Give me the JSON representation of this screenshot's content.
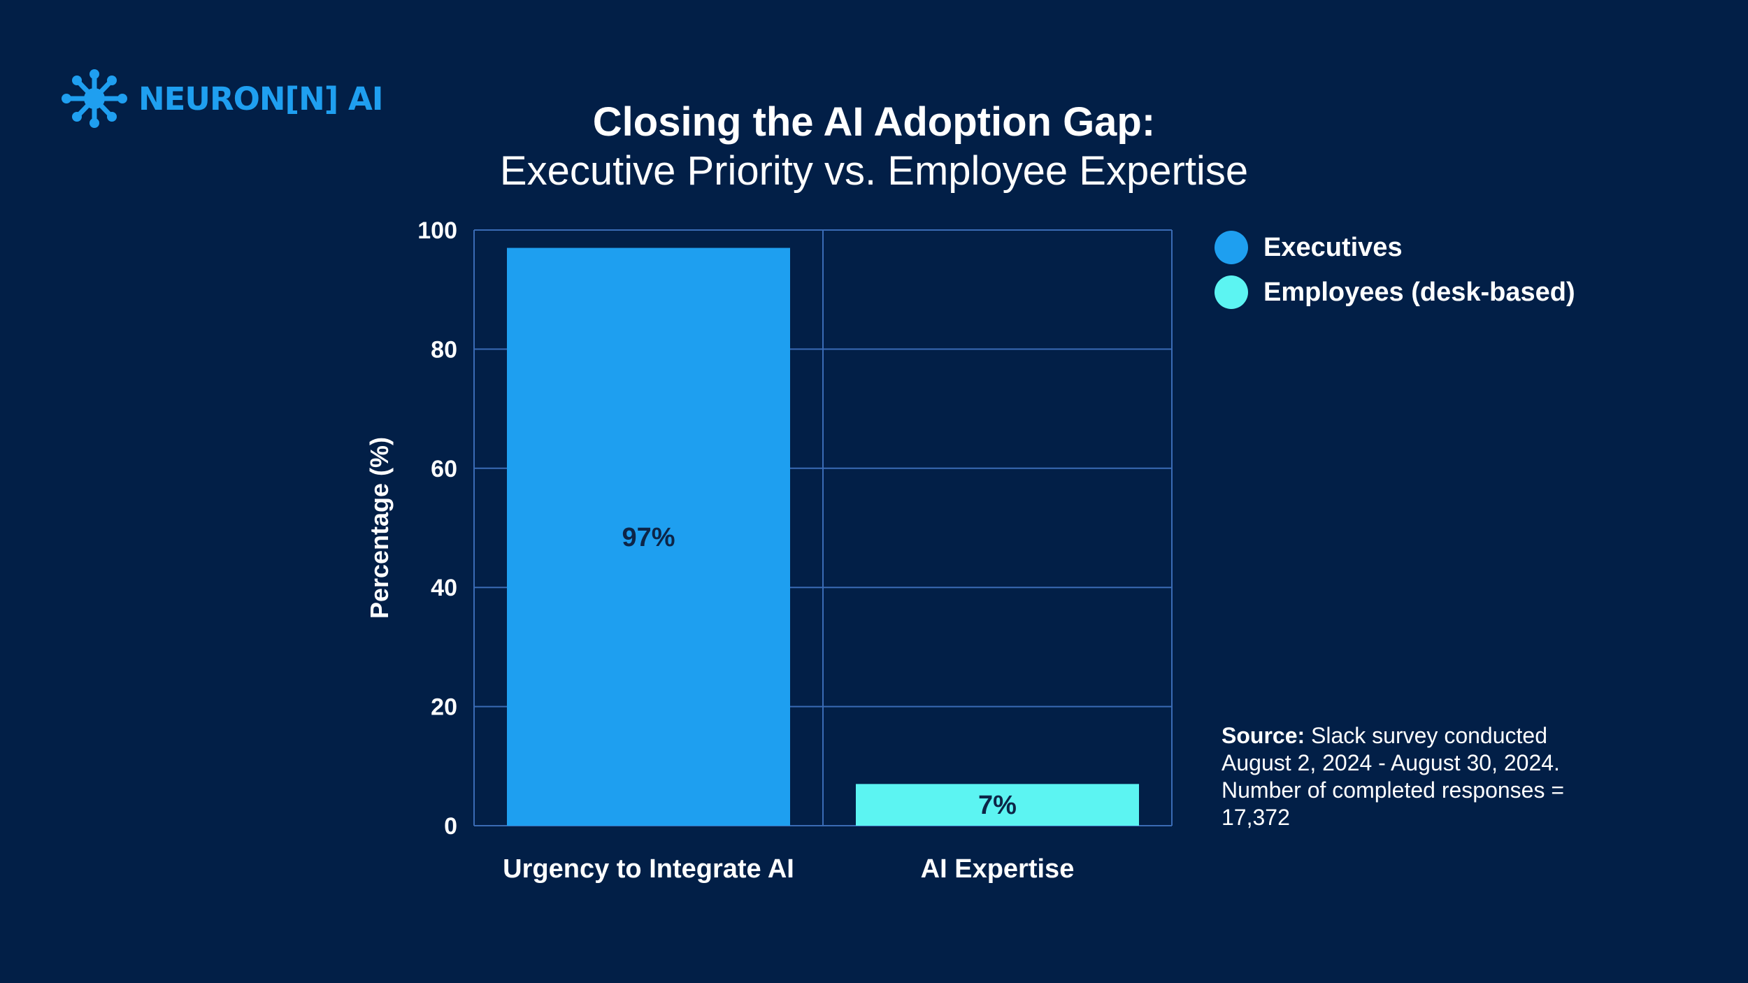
{
  "logo": {
    "text": "NEURON[N] AI",
    "icon": "neuron-network-icon",
    "color": "#1f9ff0"
  },
  "chart_data": {
    "type": "bar",
    "title": "Closing the AI Adoption Gap:",
    "subtitle": "Executive Priority vs. Employee Expertise",
    "xlabel": "",
    "ylabel": "Percentage (%)",
    "ylim": [
      0,
      100
    ],
    "yticks": [
      "0",
      "20",
      "40",
      "60",
      "80",
      "100"
    ],
    "categories": [
      "Urgency to Integrate AI",
      "AI Expertise"
    ],
    "series": [
      {
        "name": "Executives",
        "color": "#1e9ff0",
        "values": [
          97,
          null
        ]
      },
      {
        "name": "Employees (desk-based)",
        "color": "#5cf4f2",
        "values": [
          null,
          7
        ]
      }
    ],
    "data_labels": [
      "97%",
      "7%"
    ],
    "grid": true,
    "legend_position": "top-right"
  },
  "source": {
    "label": "Source:",
    "text": "Slack survey conducted August 2, 2024 - August 30, 2024. Number of completed responses = 17,372"
  },
  "colors": {
    "background": "#021f47",
    "grid": "#3a6bb5",
    "label_dark": "#0d2547"
  }
}
